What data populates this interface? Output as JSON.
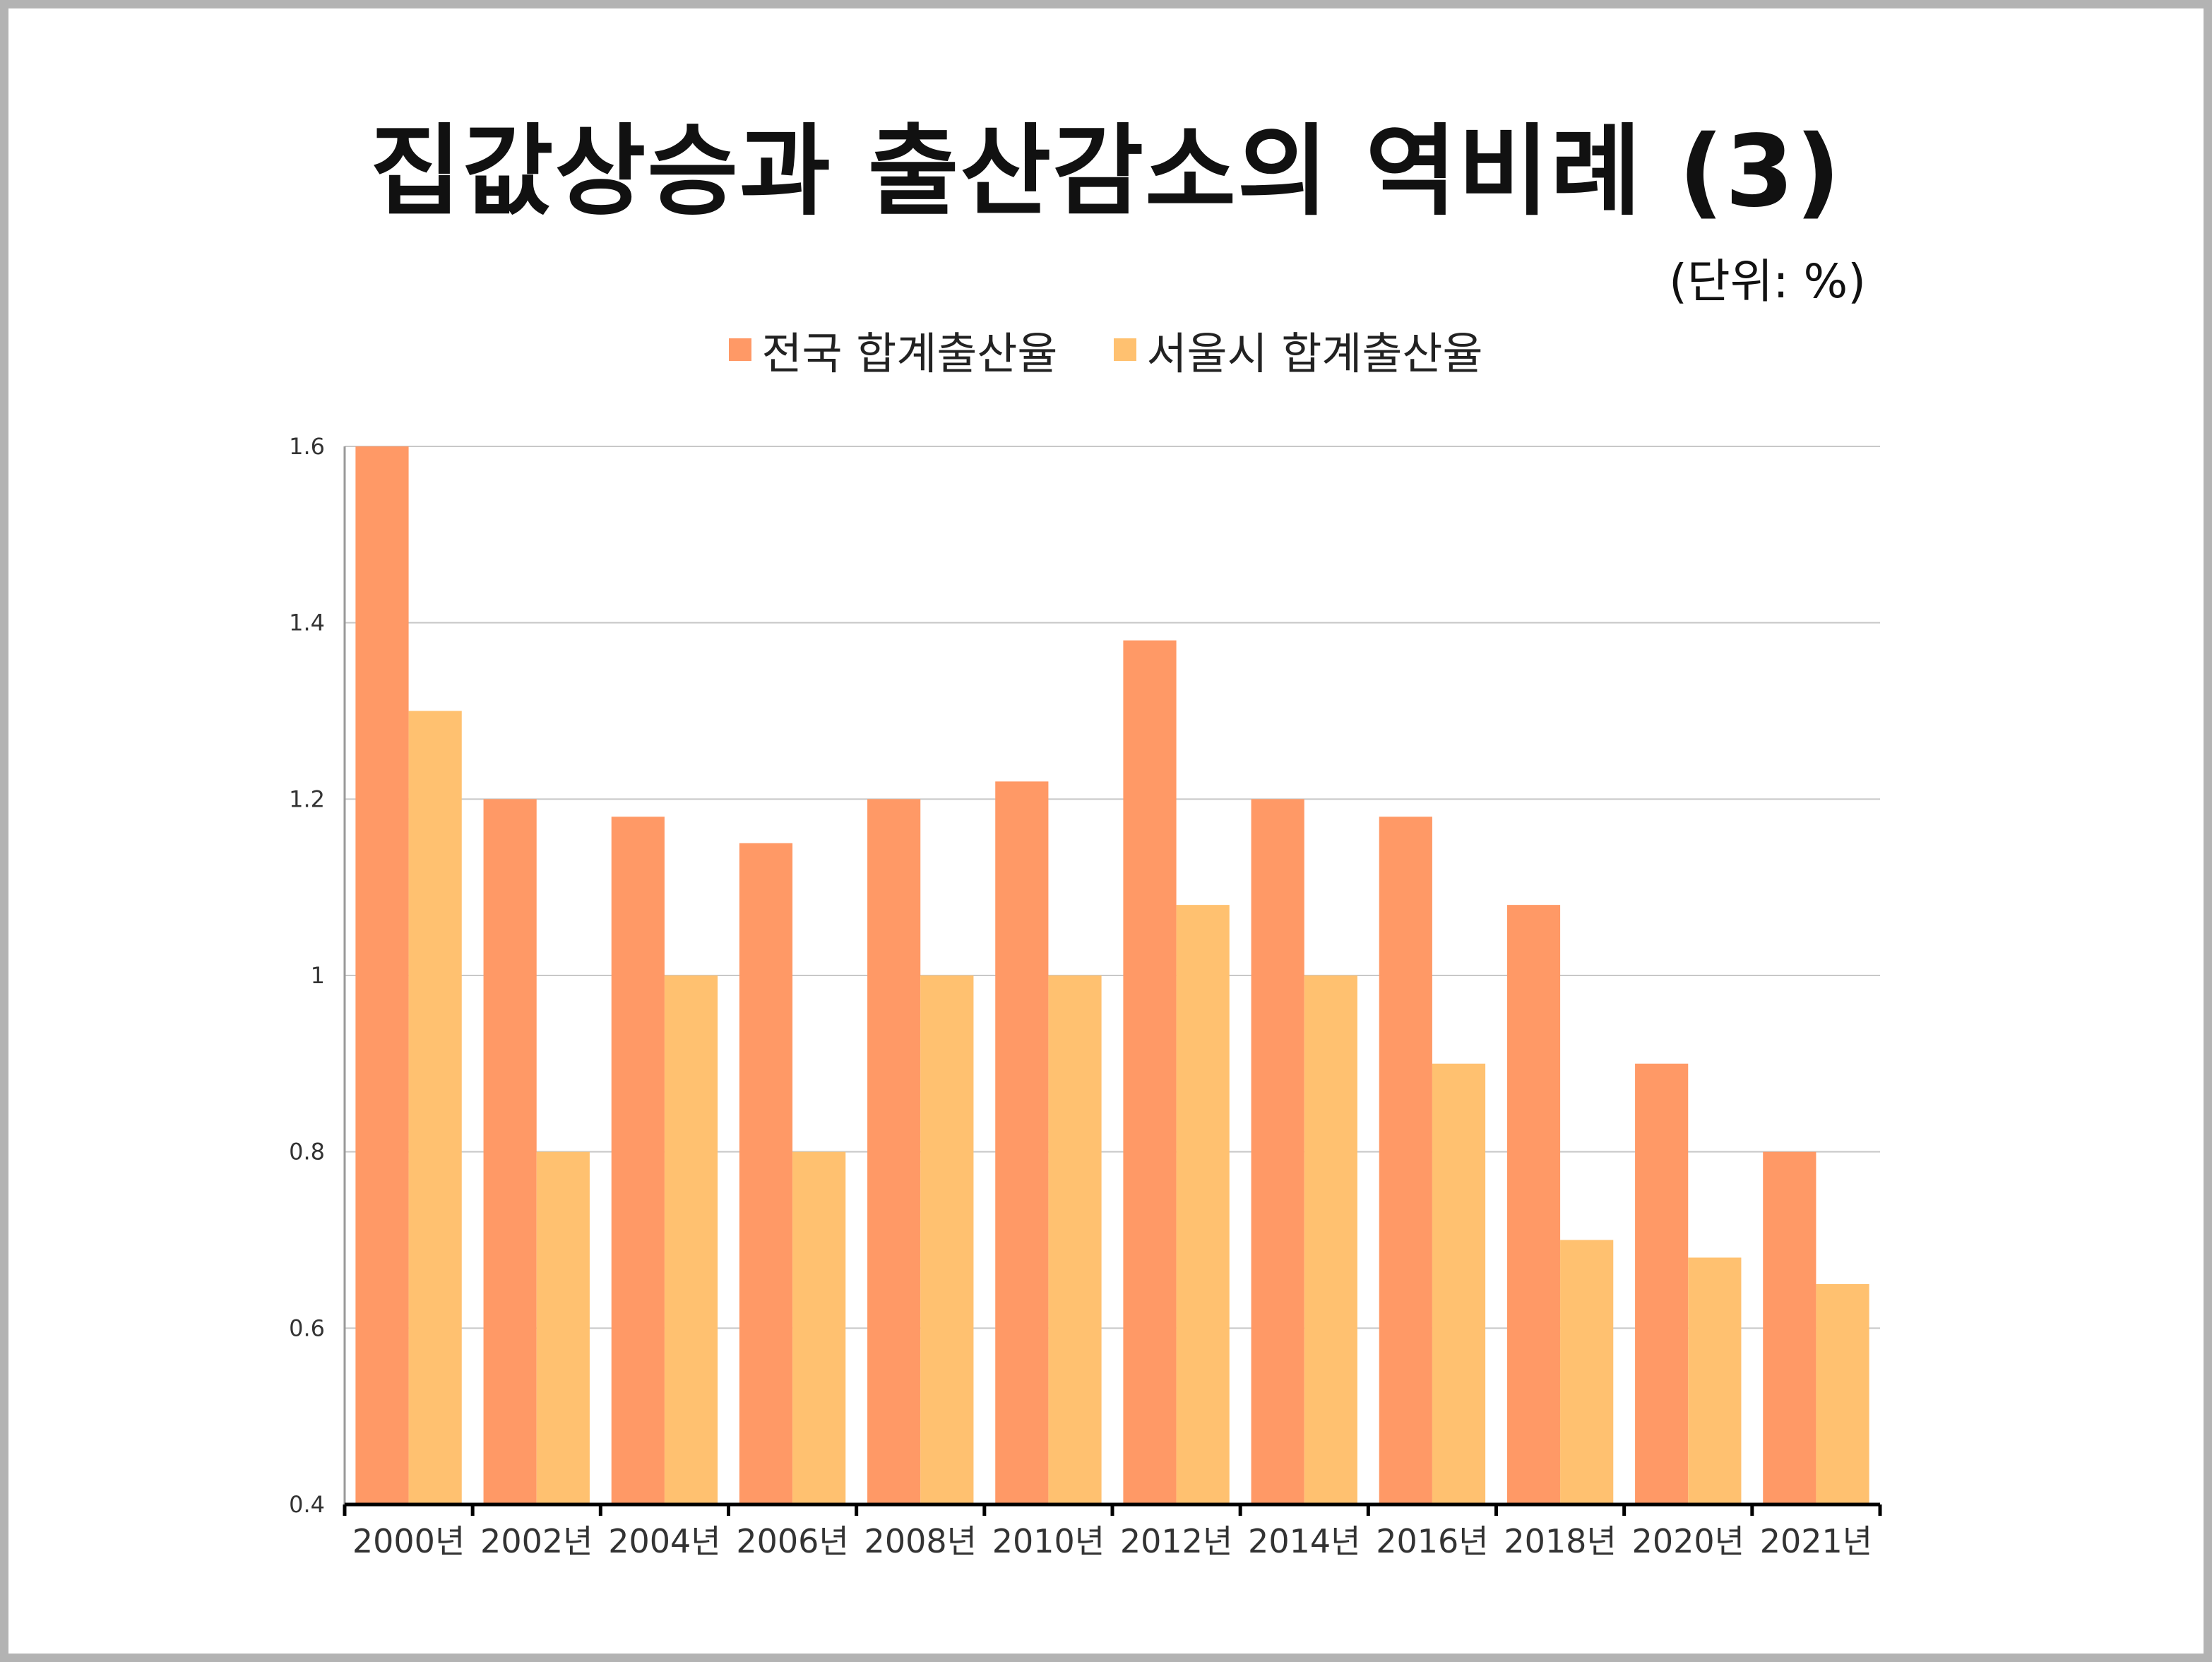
{
  "title": "집값상승과 출산감소의 역비례 (3)",
  "unit_label": "(단위: %)",
  "colors": {
    "national": "#FF9966",
    "seoul": "#FFC170",
    "grid": "#c8c8c8",
    "axis": "#000000"
  },
  "chart_data": {
    "type": "bar",
    "categories": [
      "2000년",
      "2002년",
      "2004년",
      "2006년",
      "2008년",
      "2010년",
      "2012년",
      "2014년",
      "2016년",
      "2018년",
      "2020년",
      "2021년"
    ],
    "series": [
      {
        "name": "전국 합계출산율",
        "values": [
          1.6,
          1.2,
          1.18,
          1.15,
          1.2,
          1.22,
          1.38,
          1.2,
          1.18,
          1.08,
          0.9,
          0.8
        ]
      },
      {
        "name": "서울시 합계출산율",
        "values": [
          1.3,
          0.8,
          1.0,
          0.8,
          1.0,
          1.0,
          1.08,
          1.0,
          0.9,
          0.7,
          0.68,
          0.65
        ]
      }
    ],
    "ylim": [
      0.4,
      1.6
    ],
    "yticks": [
      "1.6",
      "1.4",
      "1.2",
      "1",
      "0.8",
      "0.6",
      "0.4"
    ],
    "grid": true,
    "legend_position": "top"
  }
}
